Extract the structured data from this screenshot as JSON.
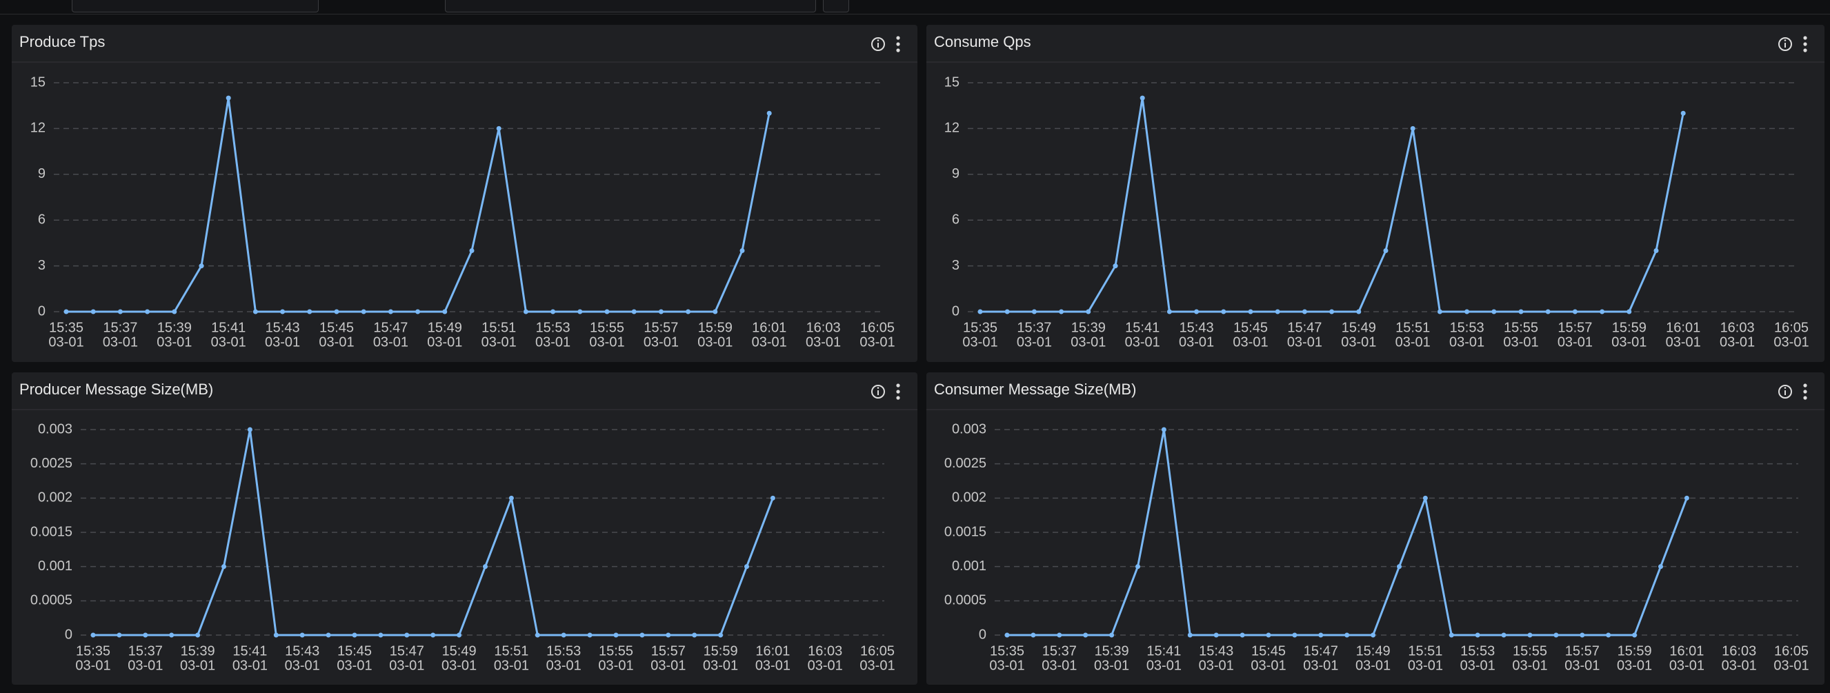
{
  "chart_data": [
    {
      "type": "line",
      "title": "Produce Tps",
      "color": "#7ab8f5",
      "grid": true,
      "categories": [
        "15:35",
        null,
        "15:37",
        null,
        "15:39",
        null,
        "15:41",
        null,
        "15:43",
        null,
        "15:45",
        null,
        "15:47",
        null,
        "15:49",
        null,
        "15:51",
        null,
        "15:53",
        null,
        "15:55",
        null,
        "15:57",
        null,
        "15:59",
        null,
        "16:01",
        null,
        "16:03",
        null,
        "16:05"
      ],
      "category_dates": [
        "03-01",
        null,
        "03-01",
        null,
        "03-01",
        null,
        "03-01",
        null,
        "03-01",
        null,
        "03-01",
        null,
        "03-01",
        null,
        "03-01",
        null,
        "03-01",
        null,
        "03-01",
        null,
        "03-01",
        null,
        "03-01",
        null,
        "03-01",
        null,
        "03-01",
        null,
        "03-01",
        null,
        "03-01"
      ],
      "values": [
        0,
        0,
        0,
        0,
        0,
        3,
        14,
        0,
        0,
        0,
        0,
        0,
        0,
        0,
        0,
        4,
        12,
        0,
        0,
        0,
        0,
        0,
        0,
        0,
        0,
        4,
        13,
        null,
        null,
        null,
        null
      ],
      "ylim": [
        0,
        15
      ],
      "yticks": [
        0,
        3,
        6,
        9,
        12,
        15
      ]
    },
    {
      "type": "line",
      "title": "Consume Qps",
      "color": "#7ab8f5",
      "grid": true,
      "categories": [
        "15:35",
        null,
        "15:37",
        null,
        "15:39",
        null,
        "15:41",
        null,
        "15:43",
        null,
        "15:45",
        null,
        "15:47",
        null,
        "15:49",
        null,
        "15:51",
        null,
        "15:53",
        null,
        "15:55",
        null,
        "15:57",
        null,
        "15:59",
        null,
        "16:01",
        null,
        "16:03",
        null,
        "16:05"
      ],
      "category_dates": [
        "03-01",
        null,
        "03-01",
        null,
        "03-01",
        null,
        "03-01",
        null,
        "03-01",
        null,
        "03-01",
        null,
        "03-01",
        null,
        "03-01",
        null,
        "03-01",
        null,
        "03-01",
        null,
        "03-01",
        null,
        "03-01",
        null,
        "03-01",
        null,
        "03-01",
        null,
        "03-01",
        null,
        "03-01"
      ],
      "values": [
        0,
        0,
        0,
        0,
        0,
        3,
        14,
        0,
        0,
        0,
        0,
        0,
        0,
        0,
        0,
        4,
        12,
        0,
        0,
        0,
        0,
        0,
        0,
        0,
        0,
        4,
        13,
        null,
        null,
        null,
        null
      ],
      "ylim": [
        0,
        15
      ],
      "yticks": [
        0,
        3,
        6,
        9,
        12,
        15
      ]
    },
    {
      "type": "line",
      "title": "Producer Message Size(MB)",
      "color": "#7ab8f5",
      "grid": true,
      "categories": [
        "15:35",
        null,
        "15:37",
        null,
        "15:39",
        null,
        "15:41",
        null,
        "15:43",
        null,
        "15:45",
        null,
        "15:47",
        null,
        "15:49",
        null,
        "15:51",
        null,
        "15:53",
        null,
        "15:55",
        null,
        "15:57",
        null,
        "15:59",
        null,
        "16:01",
        null,
        "16:03",
        null,
        "16:05"
      ],
      "category_dates": [
        "03-01",
        null,
        "03-01",
        null,
        "03-01",
        null,
        "03-01",
        null,
        "03-01",
        null,
        "03-01",
        null,
        "03-01",
        null,
        "03-01",
        null,
        "03-01",
        null,
        "03-01",
        null,
        "03-01",
        null,
        "03-01",
        null,
        "03-01",
        null,
        "03-01",
        null,
        "03-01",
        null,
        "03-01"
      ],
      "values": [
        0,
        0,
        0,
        0,
        0,
        0.001,
        0.003,
        0,
        0,
        0,
        0,
        0,
        0,
        0,
        0,
        0.001,
        0.002,
        0,
        0,
        0,
        0,
        0,
        0,
        0,
        0,
        0.001,
        0.002,
        null,
        null,
        null,
        null
      ],
      "ylim": [
        0,
        0.003
      ],
      "yticks": [
        0,
        0.0005,
        0.001,
        0.0015,
        0.002,
        0.0025,
        0.003
      ]
    },
    {
      "type": "line",
      "title": "Consumer Message Size(MB)",
      "color": "#7ab8f5",
      "grid": true,
      "categories": [
        "15:35",
        null,
        "15:37",
        null,
        "15:39",
        null,
        "15:41",
        null,
        "15:43",
        null,
        "15:45",
        null,
        "15:47",
        null,
        "15:49",
        null,
        "15:51",
        null,
        "15:53",
        null,
        "15:55",
        null,
        "15:57",
        null,
        "15:59",
        null,
        "16:01",
        null,
        "16:03",
        null,
        "16:05"
      ],
      "category_dates": [
        "03-01",
        null,
        "03-01",
        null,
        "03-01",
        null,
        "03-01",
        null,
        "03-01",
        null,
        "03-01",
        null,
        "03-01",
        null,
        "03-01",
        null,
        "03-01",
        null,
        "03-01",
        null,
        "03-01",
        null,
        "03-01",
        null,
        "03-01",
        null,
        "03-01",
        null,
        "03-01",
        null,
        "03-01"
      ],
      "values": [
        0,
        0,
        0,
        0,
        0,
        0.001,
        0.003,
        0,
        0,
        0,
        0,
        0,
        0,
        0,
        0,
        0.001,
        0.002,
        0,
        0,
        0,
        0,
        0,
        0,
        0,
        0,
        0.001,
        0.002,
        null,
        null,
        null,
        null
      ],
      "ylim": [
        0,
        0.003
      ],
      "yticks": [
        0,
        0.0005,
        0.001,
        0.0015,
        0.002,
        0.0025,
        0.003
      ]
    }
  ]
}
